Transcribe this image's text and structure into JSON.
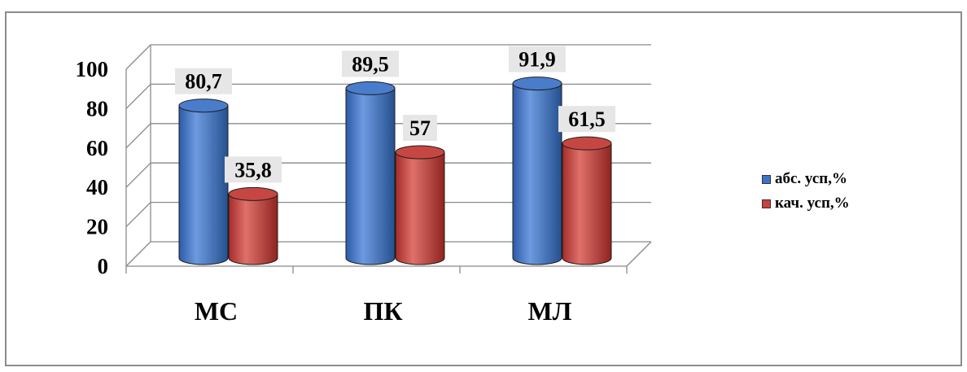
{
  "chart_data": {
    "type": "bar",
    "categories": [
      "МС",
      "ПК",
      "МЛ"
    ],
    "series": [
      {
        "name": "абс. усп,%",
        "values": [
          80.7,
          89.5,
          91.9
        ],
        "labels": [
          "80,7",
          "89,5",
          "91,9"
        ],
        "color": "#3f73c8"
      },
      {
        "name": "кач. усп,%",
        "values": [
          35.8,
          57,
          61.5
        ],
        "labels": [
          "35,8",
          "57",
          "61,5"
        ],
        "color": "#c9403c"
      }
    ],
    "ylim": [
      0,
      100
    ],
    "yticks": [
      "0",
      "20",
      "40",
      "60",
      "80",
      "100"
    ],
    "grid": true,
    "legend_position": "right",
    "style": "3d-cylinder"
  }
}
